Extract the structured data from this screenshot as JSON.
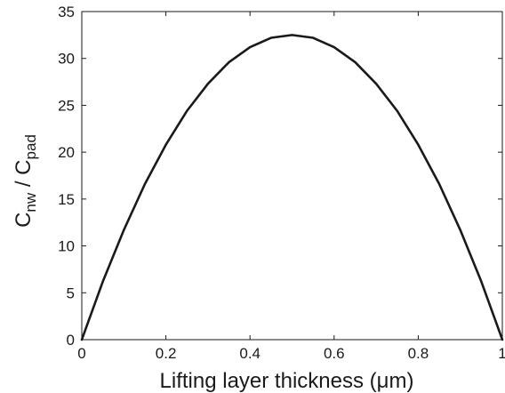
{
  "chart_data": {
    "type": "line",
    "title": "",
    "xlabel": "Lifting layer thickness (μm)",
    "ylabel": {
      "main1": "C",
      "sub1": "nw",
      "sep": " / ",
      "main2": "C",
      "sub2": "pad"
    },
    "xlim": [
      0,
      1
    ],
    "ylim": [
      0,
      35
    ],
    "xticks": [
      0,
      0.2,
      0.4,
      0.6,
      0.8,
      1
    ],
    "xtick_labels": [
      "0",
      "0.2",
      "0.4",
      "0.6",
      "0.8",
      "1"
    ],
    "yticks": [
      0,
      5,
      10,
      15,
      20,
      25,
      30,
      35
    ],
    "ytick_labels": [
      "0",
      "5",
      "10",
      "15",
      "20",
      "25",
      "30",
      "35"
    ],
    "grid": false,
    "legend": false,
    "series": [
      {
        "color": "#1a1a1a",
        "x": [
          0,
          0.05,
          0.1,
          0.15,
          0.2,
          0.25,
          0.3,
          0.35,
          0.4,
          0.45,
          0.5,
          0.55,
          0.6,
          0.65,
          0.7,
          0.75,
          0.8,
          0.85,
          0.9,
          0.95,
          1
        ],
        "y": [
          0,
          6.2,
          11.7,
          16.6,
          20.8,
          24.4,
          27.3,
          29.6,
          31.2,
          32.2,
          32.5,
          32.2,
          31.2,
          29.6,
          27.3,
          24.4,
          20.8,
          16.6,
          11.7,
          6.2,
          0
        ]
      }
    ]
  }
}
